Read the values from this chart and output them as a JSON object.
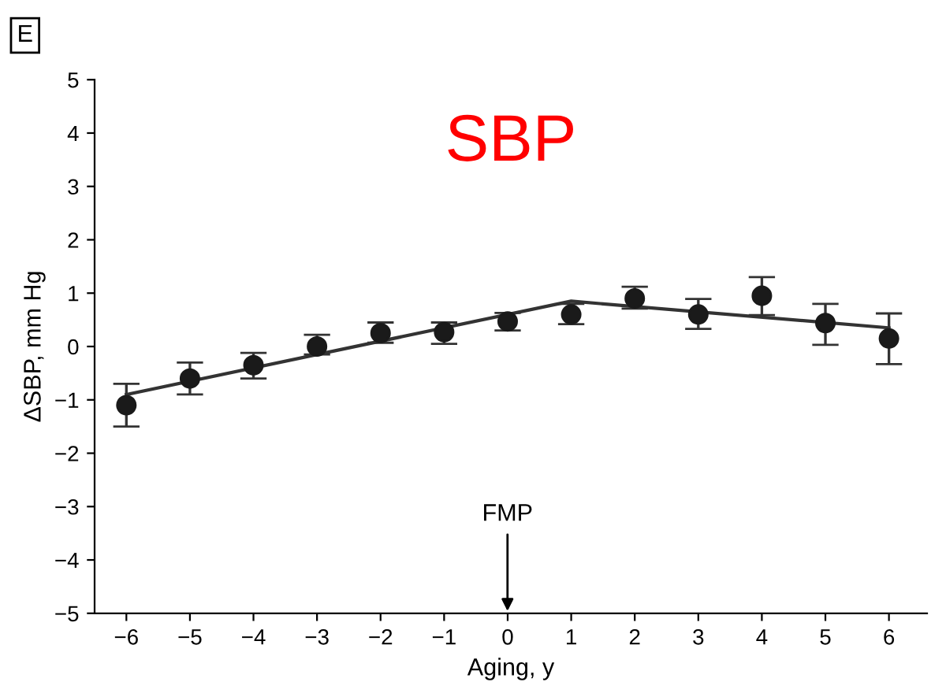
{
  "chart_data": {
    "type": "scatter",
    "title": "SBP",
    "xlabel": "Aging, y",
    "ylabel": "ΔSBP, mm Hg",
    "annotations": [
      "E",
      "FMP"
    ],
    "x": [
      -6,
      -5,
      -4,
      -3,
      -2,
      -1,
      0,
      1,
      2,
      3,
      4,
      5,
      6
    ],
    "series": [
      {
        "color": "#1a1a1a",
        "marker": "circle",
        "values": [
          -1.1,
          -0.6,
          -0.35,
          0.0,
          0.25,
          0.27,
          0.47,
          0.6,
          0.9,
          0.6,
          0.95,
          0.44,
          0.15
        ],
        "errors": [
          [
            -1.5,
            -0.7
          ],
          [
            -0.9,
            -0.3
          ],
          [
            -0.6,
            -0.12
          ],
          [
            -0.15,
            0.22
          ],
          [
            0.07,
            0.45
          ],
          [
            0.05,
            0.45
          ],
          [
            0.3,
            0.63
          ],
          [
            0.42,
            0.8
          ],
          [
            0.71,
            1.12
          ],
          [
            0.33,
            0.89
          ],
          [
            0.59,
            1.3
          ],
          [
            0.03,
            0.8
          ],
          [
            -0.33,
            0.62
          ]
        ]
      },
      {
        "type": "line",
        "color": "#333333",
        "x": [
          -6,
          1,
          6
        ],
        "values": [
          -0.9,
          0.85,
          0.35
        ],
        "marker": "none"
      }
    ],
    "grid": false,
    "xlim": [
      -6.5,
      6.6
    ],
    "ylim": [
      -5,
      5
    ],
    "xticks": [
      {
        "value": -6,
        "label": "−6"
      },
      {
        "value": -5,
        "label": "−5"
      },
      {
        "value": -4,
        "label": "−4"
      },
      {
        "value": -3,
        "label": "−3"
      },
      {
        "value": -2,
        "label": "−2"
      },
      {
        "value": -1,
        "label": "−1"
      },
      0,
      1,
      2,
      3,
      4,
      5,
      6
    ],
    "yticks": [
      {
        "value": -5,
        "label": "−5"
      },
      {
        "value": -4,
        "label": "−4"
      },
      {
        "value": -3,
        "label": "−3"
      },
      {
        "value": -2,
        "label": "−2"
      },
      {
        "value": -1,
        "label": "−1"
      },
      0,
      1,
      2,
      3,
      4,
      5
    ]
  }
}
